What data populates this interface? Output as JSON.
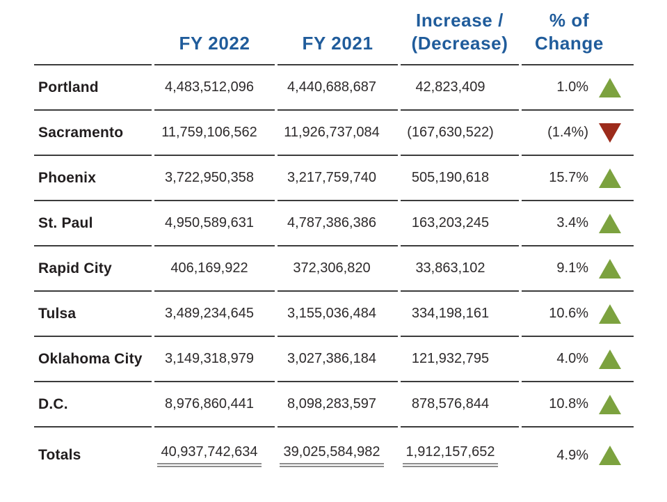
{
  "table": {
    "headers": {
      "city": "",
      "fy2022": "FY 2022",
      "fy2021": "FY 2021",
      "increase_line1": "Increase /",
      "increase_line2": "(Decrease)",
      "pct_line1": "% of",
      "pct_line2": "Change"
    },
    "rows": [
      {
        "city": "Portland",
        "fy2022": "4,483,512,096",
        "fy2021": "4,440,688,687",
        "change": "42,823,409",
        "pct": "1.0%",
        "direction": "up"
      },
      {
        "city": "Sacramento",
        "fy2022": "11,759,106,562",
        "fy2021": "11,926,737,084",
        "change": "(167,630,522)",
        "pct": "(1.4%)",
        "direction": "down"
      },
      {
        "city": "Phoenix",
        "fy2022": "3,722,950,358",
        "fy2021": "3,217,759,740",
        "change": "505,190,618",
        "pct": "15.7%",
        "direction": "up"
      },
      {
        "city": "St. Paul",
        "fy2022": "4,950,589,631",
        "fy2021": "4,787,386,386",
        "change": "163,203,245",
        "pct": "3.4%",
        "direction": "up"
      },
      {
        "city": "Rapid City",
        "fy2022": "406,169,922",
        "fy2021": "372,306,820",
        "change": "33,863,102",
        "pct": "9.1%",
        "direction": "up"
      },
      {
        "city": "Tulsa",
        "fy2022": "3,489,234,645",
        "fy2021": "3,155,036,484",
        "change": "334,198,161",
        "pct": "10.6%",
        "direction": "up"
      },
      {
        "city": "Oklahoma City",
        "fy2022": "3,149,318,979",
        "fy2021": "3,027,386,184",
        "change": "121,932,795",
        "pct": "4.0%",
        "direction": "up"
      },
      {
        "city": "D.C.",
        "fy2022": "8,976,860,441",
        "fy2021": "8,098,283,597",
        "change": "878,576,844",
        "pct": "10.8%",
        "direction": "up"
      }
    ],
    "totals": {
      "city": "Totals",
      "fy2022": "40,937,742,634",
      "fy2021": "39,025,584,982",
      "change": "1,912,157,652",
      "pct": "4.9%",
      "direction": "up"
    }
  },
  "colors": {
    "header_blue": "#205c9b",
    "increase_green": "#7ca23f",
    "decrease_red": "#9c2b1b",
    "border_dark": "#3b3b3b",
    "underline_gray": "#8c8c8c"
  },
  "chart_data": {
    "type": "table",
    "title": "",
    "columns": [
      "",
      "FY 2022",
      "FY 2021",
      "Increase / (Decrease)",
      "% of Change"
    ],
    "rows": [
      [
        "Portland",
        4483512096,
        4440688687,
        42823409,
        1.0
      ],
      [
        "Sacramento",
        11759106562,
        11926737084,
        -167630522,
        -1.4
      ],
      [
        "Phoenix",
        3722950358,
        3217759740,
        505190618,
        15.7
      ],
      [
        "St. Paul",
        4950589631,
        4787386386,
        163203245,
        3.4
      ],
      [
        "Rapid City",
        406169922,
        372306820,
        33863102,
        9.1
      ],
      [
        "Tulsa",
        3489234645,
        3155036484,
        334198161,
        10.6
      ],
      [
        "Oklahoma City",
        3149318979,
        3027386184,
        121932795,
        4.0
      ],
      [
        "D.C.",
        8976860441,
        8098283597,
        878576844,
        10.8
      ]
    ],
    "totals": [
      "Totals",
      40937742634,
      39025584982,
      1912157652,
      4.9
    ],
    "notes": "Up/down triangle indicators: green up = increase, dark-red down = decrease. Totals row has gray double underlines under the three amount columns."
  }
}
